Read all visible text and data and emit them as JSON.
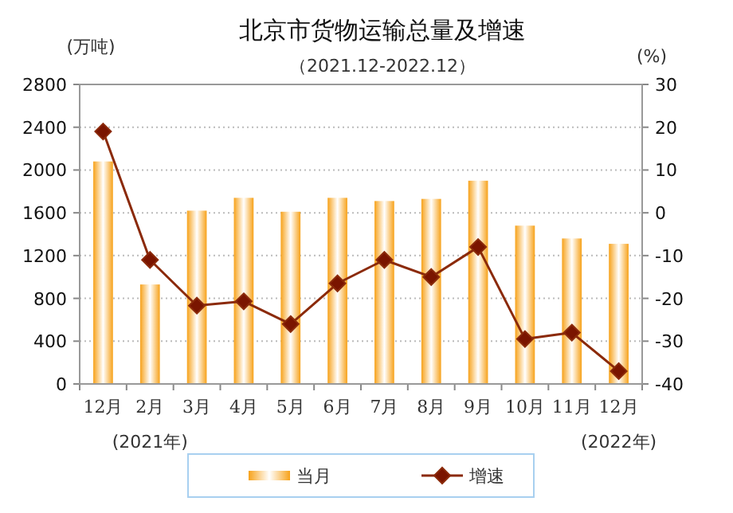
{
  "chart_data": {
    "type": "bar",
    "title": "北京市货物运输总量及增速",
    "subtitle": "（2021.12-2022.12）",
    "ylabel": "(万吨)",
    "y2label": "(%)",
    "categories": [
      "12月",
      "2月",
      "3月",
      "4月",
      "5月",
      "6月",
      "7月",
      "8月",
      "9月",
      "10月",
      "11月",
      "12月"
    ],
    "series": [
      {
        "name": "当月",
        "color": "#f7a21a",
        "values": [
          2080,
          930,
          1620,
          1740,
          1610,
          1740,
          1710,
          1730,
          1900,
          1480,
          1360,
          1310
        ]
      },
      {
        "name": "增速",
        "type": "line",
        "axis": "y2",
        "color": "#8b2a0a",
        "marker": "diamond",
        "values": [
          19,
          -11,
          -21.7,
          -20.7,
          -26,
          -16.5,
          -11,
          -15,
          -8,
          -29.5,
          -28,
          -37
        ]
      }
    ],
    "ylim": [
      0,
      2800
    ],
    "yticks": [
      0,
      400,
      800,
      1200,
      1600,
      2000,
      2400,
      2800
    ],
    "y2lim": [
      -40,
      30
    ],
    "y2ticks": [
      -40,
      -30,
      -20,
      -10,
      0,
      10,
      20,
      30
    ],
    "grid": "y",
    "legend": "bottom",
    "annotations": [
      "(2021年)",
      "(2022年)"
    ]
  }
}
